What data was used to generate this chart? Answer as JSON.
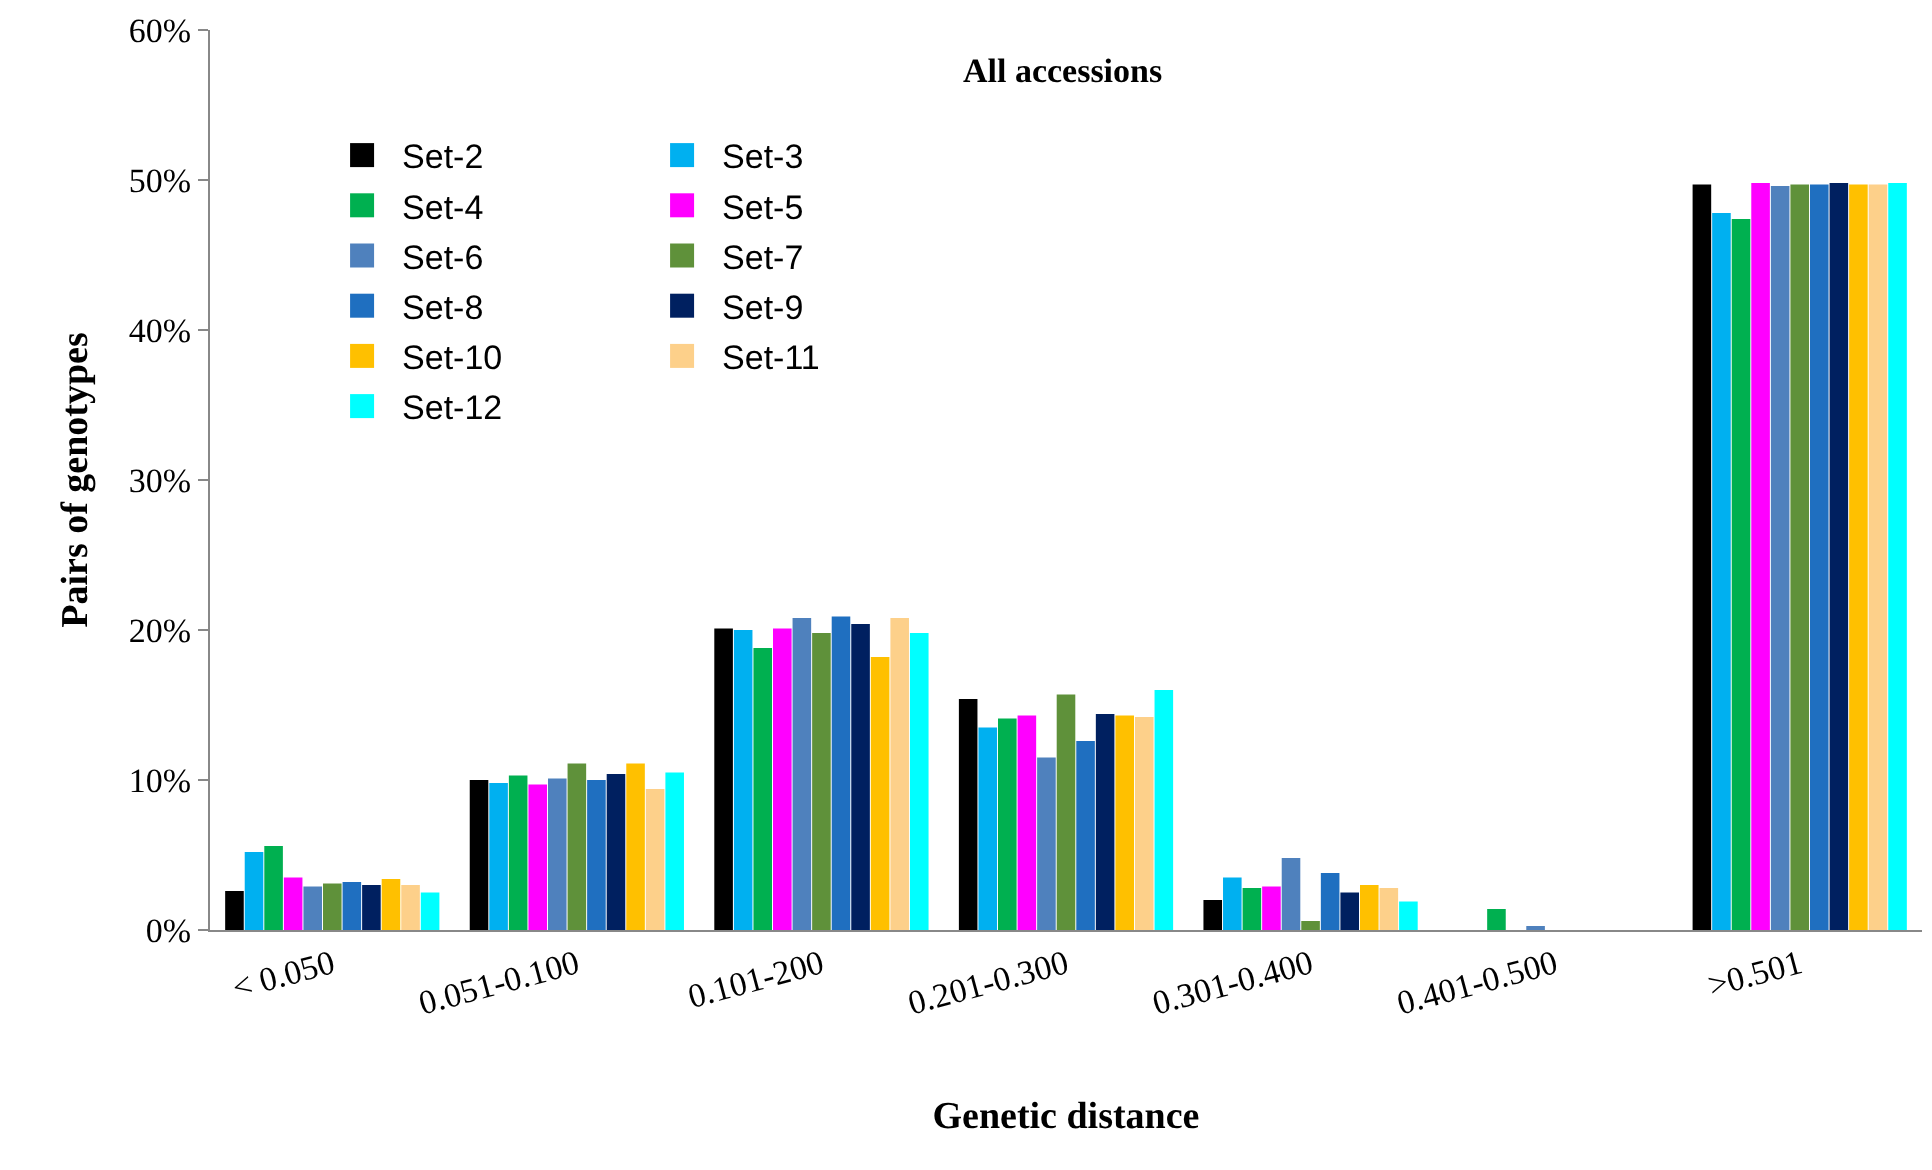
{
  "chart_data": {
    "type": "bar",
    "title": "All accessions",
    "xlabel": "Genetic distance",
    "ylabel": "Pairs of genotypes",
    "categories": [
      "< 0.050",
      "0.051-0.100",
      "0.101-200",
      "0.201-0.300",
      "0.301-0.400",
      "0.401-0.500",
      ">0.501"
    ],
    "ylim": [
      0,
      60
    ],
    "yticks": [
      {
        "value": 0,
        "label": "0%"
      },
      {
        "value": 10,
        "label": "10%"
      },
      {
        "value": 20,
        "label": "20%"
      },
      {
        "value": 30,
        "label": "30%"
      },
      {
        "value": 40,
        "label": "40%"
      },
      {
        "value": 50,
        "label": "50%"
      },
      {
        "value": 60,
        "label": "60%"
      }
    ],
    "grid": false,
    "legend": "top left",
    "series": [
      {
        "name": "Set-2",
        "color": "#000000",
        "values": [
          2.6,
          10.0,
          20.1,
          15.4,
          2.0,
          0,
          49.7
        ]
      },
      {
        "name": "Set-3",
        "color": "#00b0f0",
        "values": [
          5.2,
          9.8,
          20.0,
          13.5,
          3.5,
          0,
          47.8
        ]
      },
      {
        "name": "Set-4",
        "color": "#00b050",
        "values": [
          5.6,
          10.3,
          18.8,
          14.1,
          2.8,
          1.4,
          47.4
        ]
      },
      {
        "name": "Set-5",
        "color": "#ff00ff",
        "values": [
          3.5,
          9.7,
          20.1,
          14.3,
          2.9,
          0,
          49.8
        ]
      },
      {
        "name": "Set-6",
        "color": "#4f81bd",
        "values": [
          2.9,
          10.1,
          20.8,
          11.5,
          4.8,
          0.2,
          49.6
        ]
      },
      {
        "name": "Set-7",
        "color": "#5f913a",
        "values": [
          3.1,
          11.1,
          19.8,
          15.7,
          0.6,
          0,
          49.7
        ]
      },
      {
        "name": "Set-8",
        "color": "#1f6fc0",
        "values": [
          3.2,
          10.0,
          20.9,
          12.6,
          3.8,
          0,
          49.7
        ]
      },
      {
        "name": "Set-9",
        "color": "#002060",
        "values": [
          3.0,
          10.4,
          20.4,
          14.4,
          2.5,
          0,
          49.8
        ]
      },
      {
        "name": "Set-10",
        "color": "#ffc000",
        "values": [
          3.4,
          11.1,
          18.2,
          14.3,
          3.0,
          0,
          49.7
        ]
      },
      {
        "name": "Set-11",
        "color": "#fdd08a",
        "values": [
          3.0,
          9.4,
          20.8,
          14.2,
          2.8,
          0,
          49.7
        ]
      },
      {
        "name": "Set-12",
        "color": "#00ffff",
        "values": [
          2.5,
          10.5,
          19.8,
          16.0,
          1.9,
          0,
          49.8
        ]
      }
    ]
  }
}
